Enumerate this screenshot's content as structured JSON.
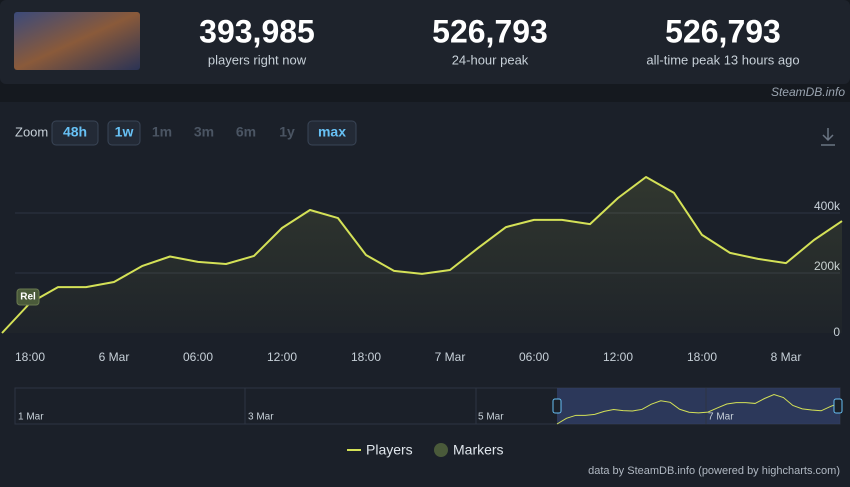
{
  "header": {
    "stats": [
      {
        "value": "393,985",
        "label": "players right now"
      },
      {
        "value": "526,793",
        "label": "24-hour peak"
      },
      {
        "value": "526,793",
        "label": "all-time peak 13 hours ago"
      }
    ],
    "source": "SteamDB.info"
  },
  "zoom": {
    "label": "Zoom",
    "buttons": [
      "48h",
      "1w",
      "1m",
      "3m",
      "6m",
      "1y",
      "max"
    ],
    "enabled": [
      true,
      true,
      false,
      false,
      false,
      false,
      true
    ]
  },
  "chart_data": {
    "type": "line",
    "categories": [
      null,
      "18:00",
      null,
      null,
      "6 Mar",
      null,
      null,
      "06:00",
      null,
      null,
      "12:00",
      null,
      null,
      "18:00",
      null,
      null,
      "7 Mar",
      null,
      null,
      "06:00",
      null,
      null,
      "12:00",
      null,
      null,
      "18:00",
      null,
      null,
      "8 Mar",
      null,
      null
    ],
    "series": [
      {
        "name": "Players",
        "color": "#d4e157",
        "values": [
          0,
          100000,
          153000,
          153000,
          170000,
          223000,
          255000,
          237000,
          230000,
          257000,
          350000,
          410000,
          383000,
          260000,
          207000,
          197000,
          210000,
          283000,
          353000,
          377000,
          377000,
          363000,
          450000,
          520000,
          467000,
          327000,
          267000,
          247000,
          233000,
          310000,
          373000
        ]
      }
    ],
    "markers": {
      "name": "Markers",
      "color": "#4a5a3a",
      "labels": [
        "Rel"
      ]
    },
    "ylim": [
      0,
      600000
    ],
    "yticks": [
      0,
      {
        "value": 200000,
        "label": "200k"
      },
      {
        "value": 400000,
        "label": "400k"
      }
    ],
    "grid": true,
    "navigator": {
      "labels": [
        "1 Mar",
        "3 Mar",
        "5 Mar",
        "7 Mar"
      ]
    },
    "credit": "data by SteamDB.info (powered by highcharts.com)"
  }
}
